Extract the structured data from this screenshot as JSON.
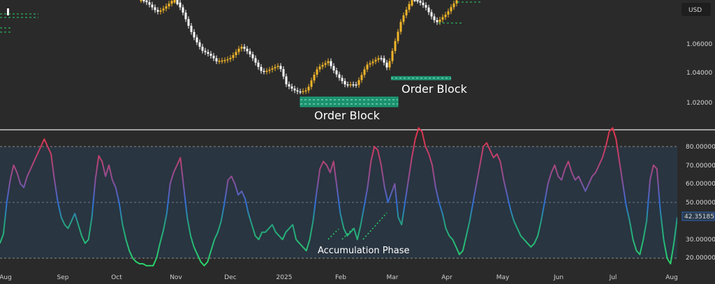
{
  "chart_data": [
    {
      "type": "candlestick",
      "currency_badge": "USD",
      "price_axis_labels": [
        "1.06000",
        "1.04000",
        "1.02000"
      ],
      "annotations": [
        "Order Block",
        "Order Block"
      ],
      "colors": {
        "bull": "#f0b429",
        "bear": "#ffffff",
        "order_block": "#1aa37a"
      }
    },
    {
      "type": "line",
      "axis_labels": [
        "80.00000",
        "70.00000",
        "60.00000",
        "50.00000",
        "30.00000",
        "20.00000"
      ],
      "current_value_label": "42.35185",
      "annotation": "Accumulation Phase",
      "ylim": [
        15,
        90
      ],
      "x_month_labels": [
        "Aug",
        "Sep",
        "Oct",
        "Nov",
        "Dec",
        "2025",
        "Feb",
        "Mar",
        "Apr",
        "May",
        "Jun",
        "Jul",
        "Aug"
      ],
      "series": [
        {
          "values": [
            28,
            33,
            50,
            62,
            70,
            66,
            60,
            58,
            64,
            68,
            72,
            76,
            80,
            84,
            80,
            76,
            62,
            50,
            42,
            38,
            36,
            40,
            44,
            38,
            32,
            28,
            30,
            42,
            62,
            75,
            72,
            64,
            70,
            62,
            58,
            50,
            38,
            30,
            24,
            20,
            18,
            17,
            17,
            16,
            16,
            16,
            20,
            28,
            35,
            44,
            60,
            66,
            70,
            74,
            58,
            42,
            32,
            26,
            22,
            18,
            16,
            18,
            24,
            30,
            34,
            40,
            50,
            62,
            64,
            60,
            54,
            56,
            52,
            44,
            38,
            32,
            30,
            34,
            34,
            36,
            38,
            34,
            32,
            30,
            34,
            36,
            38,
            30,
            28,
            26,
            24,
            30,
            40,
            55,
            68,
            72,
            70,
            66,
            72,
            58,
            44,
            36,
            32,
            34,
            36,
            30,
            38,
            48,
            58,
            72,
            80,
            78,
            70,
            58,
            50,
            55,
            60,
            42,
            38,
            50,
            62,
            74,
            84,
            90,
            88,
            80,
            76,
            70,
            58,
            50,
            44,
            36,
            32,
            30,
            26,
            22,
            24,
            32,
            40,
            50,
            60,
            70,
            80,
            82,
            78,
            74,
            76,
            72,
            62,
            54,
            46,
            40,
            36,
            32,
            30,
            28,
            26,
            28,
            32,
            40,
            50,
            60,
            66,
            70,
            64,
            62,
            68,
            72,
            66,
            62,
            64,
            60,
            56,
            60,
            64,
            66,
            70,
            74,
            80,
            88,
            90,
            84,
            72,
            60,
            48,
            40,
            30,
            24,
            22,
            30,
            40,
            62,
            70,
            68,
            46,
            30,
            20,
            17,
            28,
            42
          ]
        }
      ],
      "colors": {
        "high": "#e0334a",
        "mid": "#2f6fd6",
        "low": "#2ad36b"
      }
    }
  ]
}
